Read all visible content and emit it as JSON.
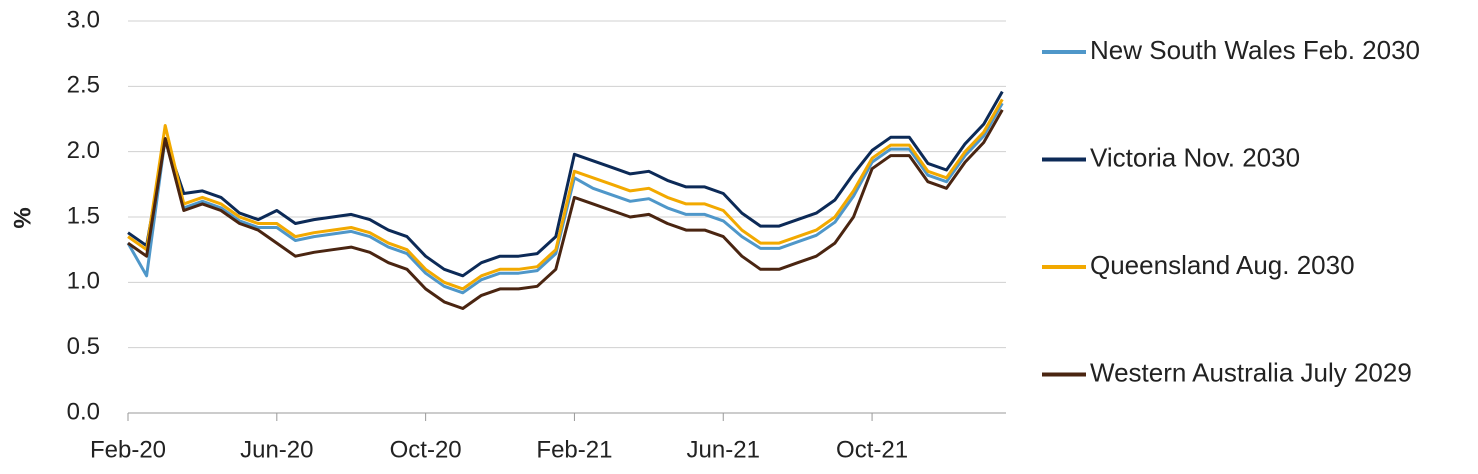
{
  "chart_data": {
    "type": "line",
    "y_label": "%",
    "x": [
      0,
      0.5,
      1,
      1.5,
      2,
      2.5,
      3,
      3.5,
      4,
      4.5,
      5,
      5.5,
      6,
      6.5,
      7,
      7.5,
      8,
      8.5,
      9,
      9.5,
      10,
      10.5,
      11,
      11.5,
      12,
      12.5,
      13,
      13.5,
      14,
      14.5,
      15,
      15.5,
      16,
      16.5,
      17,
      17.5,
      18,
      18.5,
      19,
      19.5,
      20,
      20.5,
      21,
      21.5,
      22,
      22.5,
      23,
      23.5
    ],
    "xlim": [
      0,
      23.6
    ],
    "xticks": [
      {
        "value": 0,
        "label": "Feb-20"
      },
      {
        "value": 4,
        "label": "Jun-20"
      },
      {
        "value": 8,
        "label": "Oct-20"
      },
      {
        "value": 12,
        "label": "Feb-21"
      },
      {
        "value": 16,
        "label": "Jun-21"
      },
      {
        "value": 20,
        "label": "Oct-21"
      }
    ],
    "ylim": [
      0,
      3
    ],
    "yticks": [
      {
        "value": 0,
        "label": "0.0"
      },
      0.5,
      {
        "value": 1,
        "label": "1.0"
      },
      1.5,
      {
        "value": 2,
        "label": "2.0"
      },
      2.5,
      {
        "value": 3,
        "label": "3.0"
      }
    ],
    "grid": true,
    "legend": "right",
    "series": [
      {
        "name": "New South Wales Feb. 2030",
        "color": "#4f97c9",
        "values": [
          1.3,
          1.05,
          2.1,
          1.57,
          1.62,
          1.57,
          1.47,
          1.42,
          1.42,
          1.32,
          1.35,
          1.37,
          1.39,
          1.35,
          1.27,
          1.22,
          1.07,
          0.97,
          0.92,
          1.02,
          1.07,
          1.07,
          1.09,
          1.22,
          1.8,
          1.72,
          1.67,
          1.62,
          1.64,
          1.57,
          1.52,
          1.52,
          1.47,
          1.35,
          1.26,
          1.26,
          1.31,
          1.36,
          1.46,
          1.66,
          1.92,
          2.02,
          2.02,
          1.82,
          1.77,
          1.97,
          2.12,
          2.37
        ]
      },
      {
        "name": "Victoria Nov. 2030",
        "color": "#0c2a57",
        "values": [
          1.38,
          1.28,
          2.1,
          1.68,
          1.7,
          1.65,
          1.53,
          1.48,
          1.55,
          1.45,
          1.48,
          1.5,
          1.52,
          1.48,
          1.4,
          1.35,
          1.2,
          1.1,
          1.05,
          1.15,
          1.2,
          1.2,
          1.22,
          1.35,
          1.98,
          1.93,
          1.88,
          1.83,
          1.85,
          1.78,
          1.73,
          1.73,
          1.68,
          1.53,
          1.43,
          1.43,
          1.48,
          1.53,
          1.63,
          1.83,
          2.01,
          2.11,
          2.11,
          1.91,
          1.86,
          2.06,
          2.21,
          2.46
        ]
      },
      {
        "name": "Queensland Aug. 2030",
        "color": "#f2a900",
        "values": [
          1.35,
          1.25,
          2.2,
          1.6,
          1.65,
          1.6,
          1.5,
          1.45,
          1.45,
          1.35,
          1.38,
          1.4,
          1.42,
          1.38,
          1.3,
          1.25,
          1.1,
          1.0,
          0.95,
          1.05,
          1.1,
          1.1,
          1.12,
          1.25,
          1.85,
          1.8,
          1.75,
          1.7,
          1.72,
          1.65,
          1.6,
          1.6,
          1.55,
          1.4,
          1.3,
          1.3,
          1.35,
          1.4,
          1.5,
          1.7,
          1.95,
          2.05,
          2.05,
          1.85,
          1.8,
          2.0,
          2.15,
          2.4
        ]
      },
      {
        "name": "Western Australia July 2029",
        "color": "#4a2511",
        "values": [
          1.3,
          1.2,
          2.1,
          1.55,
          1.6,
          1.55,
          1.45,
          1.4,
          1.3,
          1.2,
          1.23,
          1.25,
          1.27,
          1.23,
          1.15,
          1.1,
          0.95,
          0.85,
          0.8,
          0.9,
          0.95,
          0.95,
          0.97,
          1.1,
          1.65,
          1.6,
          1.55,
          1.5,
          1.52,
          1.45,
          1.4,
          1.4,
          1.35,
          1.2,
          1.1,
          1.1,
          1.15,
          1.2,
          1.3,
          1.5,
          1.87,
          1.97,
          1.97,
          1.77,
          1.72,
          1.92,
          2.07,
          2.32
        ]
      }
    ]
  }
}
